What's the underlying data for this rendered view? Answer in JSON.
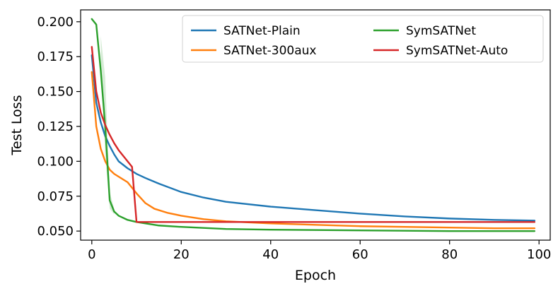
{
  "chart_data": {
    "type": "line",
    "xlabel": "Epoch",
    "ylabel": "Test Loss",
    "xlim": [
      -2.5,
      102.5
    ],
    "ylim": [
      0.0435,
      0.2085
    ],
    "xticks": [
      0,
      20,
      40,
      60,
      80,
      100
    ],
    "xtick_labels": [
      "0",
      "20",
      "40",
      "60",
      "80",
      "100"
    ],
    "yticks": [
      0.05,
      0.075,
      0.1,
      0.125,
      0.15,
      0.175,
      0.2
    ],
    "ytick_labels": [
      "0.050",
      "0.075",
      "0.100",
      "0.125",
      "0.150",
      "0.175",
      "0.200"
    ],
    "grid": false,
    "legend": {
      "placement": "top-right",
      "columns": 2
    },
    "series": [
      {
        "name": "SATNet-Plain",
        "color": "#1f77b4",
        "points": [
          [
            0,
            0.176
          ],
          [
            1,
            0.142
          ],
          [
            2,
            0.128
          ],
          [
            3,
            0.118
          ],
          [
            4,
            0.111
          ],
          [
            5,
            0.105
          ],
          [
            6,
            0.1
          ],
          [
            8,
            0.095
          ],
          [
            10,
            0.091
          ],
          [
            12,
            0.088
          ],
          [
            15,
            0.084
          ],
          [
            20,
            0.078
          ],
          [
            25,
            0.074
          ],
          [
            30,
            0.071
          ],
          [
            40,
            0.0675
          ],
          [
            50,
            0.065
          ],
          [
            60,
            0.0625
          ],
          [
            70,
            0.0605
          ],
          [
            80,
            0.059
          ],
          [
            90,
            0.058
          ],
          [
            99,
            0.0575
          ]
        ]
      },
      {
        "name": "SATNet-300aux",
        "color": "#ff7f0e",
        "points": [
          [
            0,
            0.164
          ],
          [
            1,
            0.125
          ],
          [
            2,
            0.109
          ],
          [
            3,
            0.1
          ],
          [
            4,
            0.094
          ],
          [
            5,
            0.091
          ],
          [
            6,
            0.089
          ],
          [
            8,
            0.085
          ],
          [
            10,
            0.077
          ],
          [
            12,
            0.07
          ],
          [
            14,
            0.066
          ],
          [
            17,
            0.063
          ],
          [
            20,
            0.061
          ],
          [
            25,
            0.0585
          ],
          [
            30,
            0.057
          ],
          [
            40,
            0.0555
          ],
          [
            50,
            0.0545
          ],
          [
            60,
            0.0535
          ],
          [
            70,
            0.053
          ],
          [
            80,
            0.0525
          ],
          [
            90,
            0.052
          ],
          [
            99,
            0.052
          ]
        ]
      },
      {
        "name": "SymSATNet",
        "color": "#2ca02c",
        "band_color": "#cfe9cf",
        "band": [
          [
            2,
            0.17,
            0.19
          ],
          [
            3,
            0.105,
            0.16
          ],
          [
            4,
            0.066,
            0.078
          ],
          [
            5,
            0.062,
            0.066
          ]
        ],
        "points": [
          [
            0,
            0.202
          ],
          [
            1,
            0.198
          ],
          [
            2,
            0.165
          ],
          [
            3,
            0.125
          ],
          [
            4,
            0.072
          ],
          [
            5,
            0.064
          ],
          [
            6,
            0.061
          ],
          [
            8,
            0.058
          ],
          [
            10,
            0.0565
          ],
          [
            15,
            0.054
          ],
          [
            20,
            0.053
          ],
          [
            30,
            0.0515
          ],
          [
            40,
            0.051
          ],
          [
            60,
            0.0505
          ],
          [
            80,
            0.05
          ],
          [
            99,
            0.05
          ]
        ]
      },
      {
        "name": "SymSATNet-Auto",
        "color": "#d62728",
        "points": [
          [
            0,
            0.182
          ],
          [
            1,
            0.15
          ],
          [
            2,
            0.135
          ],
          [
            3,
            0.126
          ],
          [
            4,
            0.119
          ],
          [
            5,
            0.113
          ],
          [
            6,
            0.108
          ],
          [
            7,
            0.104
          ],
          [
            8,
            0.1
          ],
          [
            9,
            0.096
          ],
          [
            10,
            0.0565
          ],
          [
            15,
            0.0565
          ],
          [
            20,
            0.0565
          ],
          [
            40,
            0.0565
          ],
          [
            60,
            0.0565
          ],
          [
            80,
            0.0565
          ],
          [
            99,
            0.0565
          ]
        ]
      }
    ]
  }
}
